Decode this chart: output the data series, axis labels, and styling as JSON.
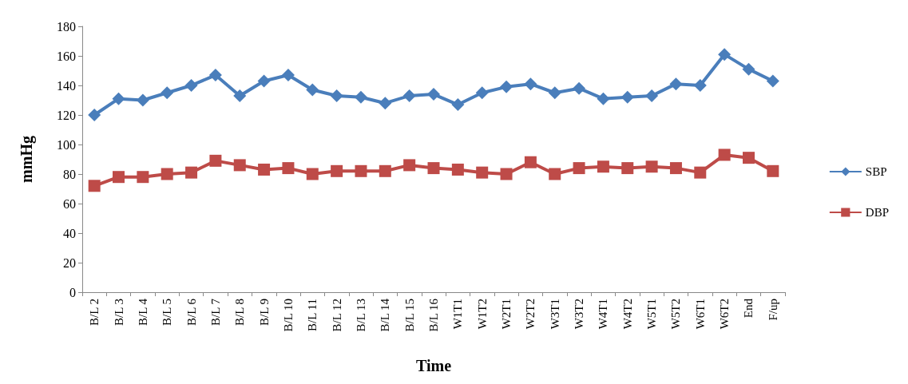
{
  "chart_data": {
    "type": "line",
    "xlabel": "Time",
    "ylabel": "mmHg",
    "categories": [
      "B/L 2",
      "B/L 3",
      "B/L 4",
      "B/L 5",
      "B/L 6",
      "B/L 7",
      "B/L 8",
      "B/L 9",
      "B/L 10",
      "B/L 11",
      "B/L 12",
      "B/L 13",
      "B/L 14",
      "B/L 15",
      "B/L 16",
      "W1T1",
      "W1T2",
      "W2T1",
      "W2T2",
      "W3T1",
      "W3T2",
      "W4T1",
      "W4T2",
      "W5T1",
      "W5T2",
      "W6T1",
      "W6T2",
      "End",
      "F/up"
    ],
    "series": [
      {
        "name": "SBP",
        "color": "#4a7ebb",
        "marker": "diamond",
        "values": [
          120,
          131,
          130,
          135,
          140,
          147,
          133,
          143,
          147,
          137,
          133,
          132,
          128,
          133,
          134,
          127,
          135,
          139,
          141,
          135,
          138,
          131,
          132,
          133,
          141,
          140,
          161,
          151,
          143
        ]
      },
      {
        "name": "DBP",
        "color": "#be4b48",
        "marker": "square",
        "values": [
          72,
          78,
          78,
          80,
          81,
          89,
          86,
          83,
          84,
          80,
          82,
          82,
          82,
          86,
          84,
          83,
          81,
          80,
          88,
          80,
          84,
          85,
          84,
          85,
          84,
          81,
          93,
          91,
          82
        ]
      }
    ],
    "ylim": [
      0,
      180
    ],
    "yticks": [
      0,
      20,
      40,
      60,
      80,
      100,
      120,
      140,
      160,
      180
    ],
    "grid": false,
    "legend": "right",
    "line_style": "solid"
  }
}
